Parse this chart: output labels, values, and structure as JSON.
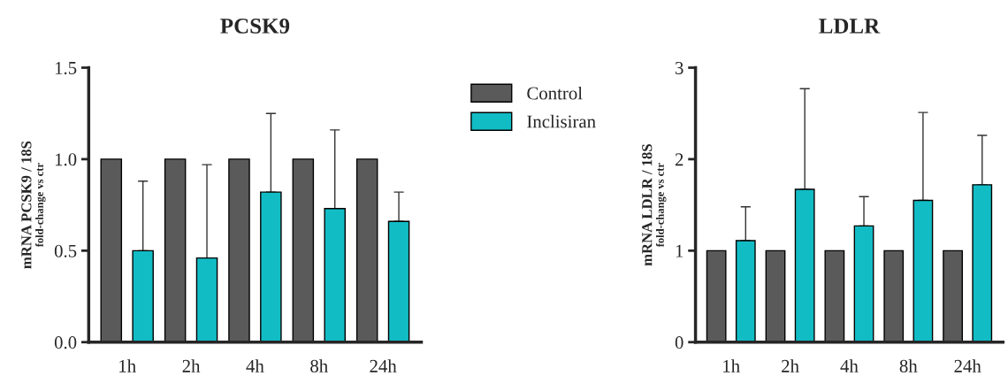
{
  "chart_data": [
    {
      "type": "bar",
      "title": "PCSK9",
      "ylabel": "mRNA PCSK9 / 18S\nfold-change vs ctr",
      "categories": [
        "1h",
        "2h",
        "4h",
        "8h",
        "24h"
      ],
      "ylim": [
        0,
        1.5
      ],
      "yticks": [
        {
          "value": 0,
          "label": "0.0"
        },
        0.5,
        {
          "value": 1,
          "label": "1.0"
        },
        1.5
      ],
      "legend": "right",
      "series": [
        {
          "name": "Control",
          "color": "#5a5a5a",
          "values": [
            1,
            1,
            1,
            1,
            1
          ]
        },
        {
          "name": "Inclisiran",
          "color": "#12bcc4",
          "values": [
            0.5,
            0.46,
            0.82,
            0.73,
            0.66
          ],
          "errors": [
            [
              0.5,
              0.88
            ],
            [
              0.46,
              0.97
            ],
            [
              0.82,
              1.25
            ],
            [
              0.73,
              1.16
            ],
            [
              0.66,
              0.82
            ]
          ]
        }
      ]
    },
    {
      "type": "bar",
      "title": "LDLR",
      "ylabel": "mRNA LDLR / 18S\nfold-change vs ctr",
      "categories": [
        "1h",
        "2h",
        "4h",
        "8h",
        "24h"
      ],
      "ylim": [
        0,
        3
      ],
      "yticks": [
        0,
        1,
        2,
        3
      ],
      "series": [
        {
          "color": "#5a5a5a",
          "values": [
            1,
            1,
            1,
            1,
            1
          ]
        },
        {
          "color": "#12bcc4",
          "values": [
            1.11,
            1.67,
            1.27,
            1.55,
            1.72
          ],
          "errors": [
            [
              1.11,
              1.48
            ],
            [
              1.67,
              2.77
            ],
            [
              1.27,
              1.59
            ],
            [
              1.55,
              2.51
            ],
            [
              1.72,
              2.26
            ]
          ]
        }
      ]
    }
  ]
}
